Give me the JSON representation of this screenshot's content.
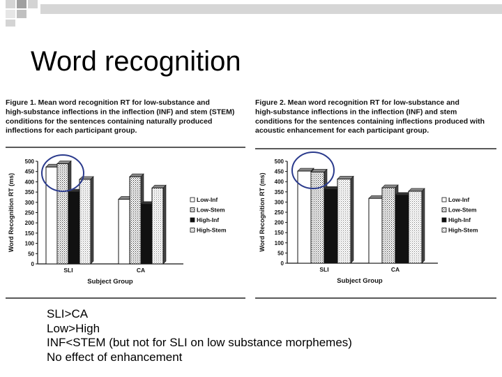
{
  "slide": {
    "title": "Word recognition",
    "bullets": [
      "SLI>CA",
      "Low>High",
      "INF<STEM (but not for SLI on low substance morphemes)",
      "No effect of enhancement"
    ]
  },
  "colors": {
    "highlight_circle": "#2a3a8c",
    "decoration": "#c9c9c9"
  },
  "figures": [
    {
      "caption_lead": "Figure 1.",
      "caption_text": "Mean word recognition RT for low-substance and high-substance inflections in the inflection (INF) and stem (STEM) conditions for the sentences containing naturally produced inflections for each participant group."
    },
    {
      "caption_lead": "Figure 2.",
      "caption_text": "Mean word recognition RT for low-substance and high-substance inflections in the inflection (INF) and stem conditions for the sentences containing inflections produced with acoustic enhancement for each participant group."
    }
  ],
  "chart_data": [
    {
      "type": "bar",
      "categories": [
        "SLI",
        "CA"
      ],
      "series": [
        {
          "name": "Low-Inf",
          "values": [
            472,
            315
          ]
        },
        {
          "name": "Low-Stem",
          "values": [
            488,
            425
          ]
        },
        {
          "name": "High-Inf",
          "values": [
            350,
            290
          ]
        },
        {
          "name": "High-Stem",
          "values": [
            412,
            370
          ]
        }
      ],
      "xlabel": "Subject Group",
      "ylabel": "Word Recognition RT (ms)",
      "ylim": [
        0,
        500
      ],
      "yticks": [
        0,
        50,
        100,
        150,
        200,
        250,
        300,
        350,
        400,
        450,
        500
      ],
      "legend": "right",
      "grid": false
    },
    {
      "type": "bar",
      "categories": [
        "SLI",
        "CA"
      ],
      "series": [
        {
          "name": "Low-Inf",
          "values": [
            452,
            318
          ]
        },
        {
          "name": "Low-Stem",
          "values": [
            447,
            370
          ]
        },
        {
          "name": "High-Inf",
          "values": [
            362,
            333
          ]
        },
        {
          "name": "High-Stem",
          "values": [
            413,
            353
          ]
        }
      ],
      "xlabel": "Subject Group",
      "ylabel": "Word Recognition RT (ms)",
      "ylim": [
        0,
        500
      ],
      "yticks": [
        0,
        50,
        100,
        150,
        200,
        250,
        300,
        350,
        400,
        450,
        500
      ],
      "legend": "right",
      "grid": false
    }
  ]
}
